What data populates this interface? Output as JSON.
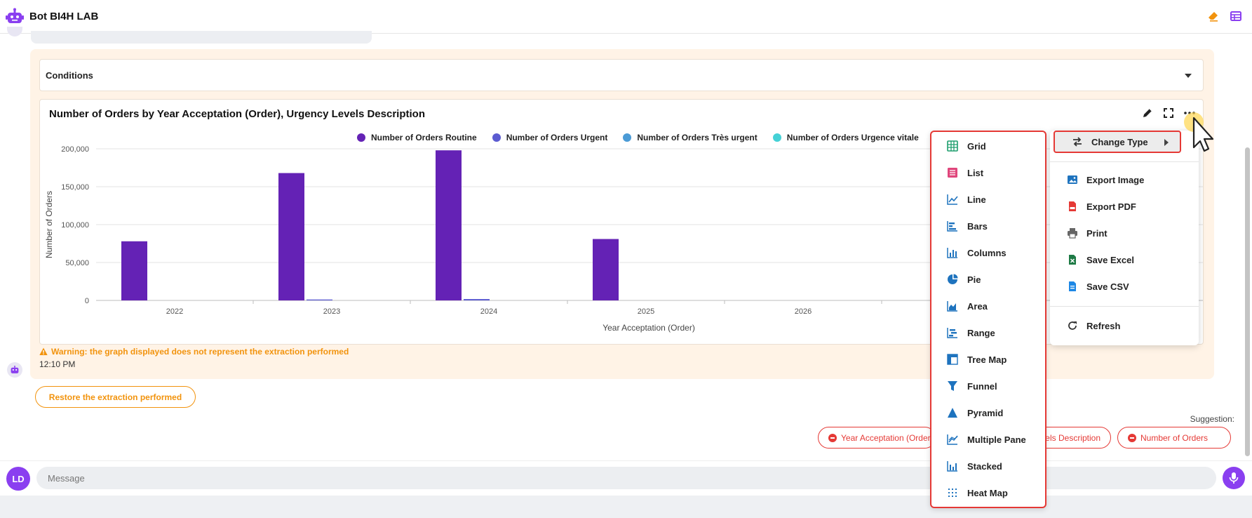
{
  "header": {
    "title": "Bot BI4H LAB",
    "icons": [
      "robot-icon",
      "eraser-icon",
      "table-icon"
    ]
  },
  "conditions": {
    "label": "Conditions"
  },
  "chart_data": {
    "type": "bar",
    "title": "Number of Orders by Year Acceptation (Order), Urgency Levels Description",
    "xlabel": "Year Acceptation (Order)",
    "ylabel": "Number of Orders",
    "ylim": [
      0,
      200000
    ],
    "yticks": [
      "0",
      "50,000",
      "100,000",
      "150,000",
      "200,000"
    ],
    "categories": [
      "2022",
      "2023",
      "2024",
      "2025",
      "2026"
    ],
    "legend_position": "top",
    "series": [
      {
        "name": "Number of Orders Routine",
        "color": "#6422b5",
        "values": [
          78000,
          168000,
          198000,
          81000,
          0
        ]
      },
      {
        "name": "Number of Orders Urgent",
        "color": "#5b5bd1",
        "values": [
          0,
          1200,
          1800,
          0,
          0
        ]
      },
      {
        "name": "Number of Orders Très urgent",
        "color": "#4b9bd6",
        "values": [
          0,
          0,
          0,
          0,
          0
        ]
      },
      {
        "name": "Number of Orders Urgence vitale",
        "color": "#45d1d6",
        "values": [
          0,
          0,
          0,
          0,
          0
        ]
      }
    ]
  },
  "warning": "Warning: the graph displayed does not represent the extraction performed",
  "timestamp": "12:10 PM",
  "restore_button": "Restore the extraction performed",
  "suggestion": {
    "label": "Suggestion:",
    "chips": [
      "Year Acceptation (Order)",
      "Urgency Levels Description",
      "Number of Orders"
    ]
  },
  "composer": {
    "avatar": "LD",
    "placeholder": "Message"
  },
  "type_menu": [
    {
      "label": "Grid",
      "icon": "grid-icon",
      "color": "#1e9e6e"
    },
    {
      "label": "List",
      "icon": "list-icon",
      "color": "#e0467c"
    },
    {
      "label": "Line",
      "icon": "line-chart-icon",
      "color": "#1e73be"
    },
    {
      "label": "Bars",
      "icon": "bar-chart-icon",
      "color": "#1e73be"
    },
    {
      "label": "Columns",
      "icon": "column-chart-icon",
      "color": "#1e73be"
    },
    {
      "label": "Pie",
      "icon": "pie-chart-icon",
      "color": "#1e73be"
    },
    {
      "label": "Area",
      "icon": "area-chart-icon",
      "color": "#1e73be"
    },
    {
      "label": "Range",
      "icon": "range-chart-icon",
      "color": "#1e73be"
    },
    {
      "label": "Tree Map",
      "icon": "treemap-icon",
      "color": "#1e73be"
    },
    {
      "label": "Funnel",
      "icon": "funnel-icon",
      "color": "#1e73be"
    },
    {
      "label": "Pyramid",
      "icon": "pyramid-icon",
      "color": "#1e73be"
    },
    {
      "label": "Multiple Pane",
      "icon": "multiple-pane-icon",
      "color": "#1e73be"
    },
    {
      "label": "Stacked",
      "icon": "stacked-icon",
      "color": "#1e73be"
    },
    {
      "label": "Heat Map",
      "icon": "heatmap-icon",
      "color": "#1e73be"
    }
  ],
  "action_menu": {
    "change_type": "Change Type",
    "items": [
      {
        "label": "Export Image",
        "icon": "image-icon"
      },
      {
        "label": "Export PDF",
        "icon": "pdf-icon"
      },
      {
        "label": "Print",
        "icon": "print-icon"
      },
      {
        "label": "Save Excel",
        "icon": "excel-icon"
      },
      {
        "label": "Save CSV",
        "icon": "csv-icon"
      }
    ],
    "refresh": "Refresh"
  }
}
